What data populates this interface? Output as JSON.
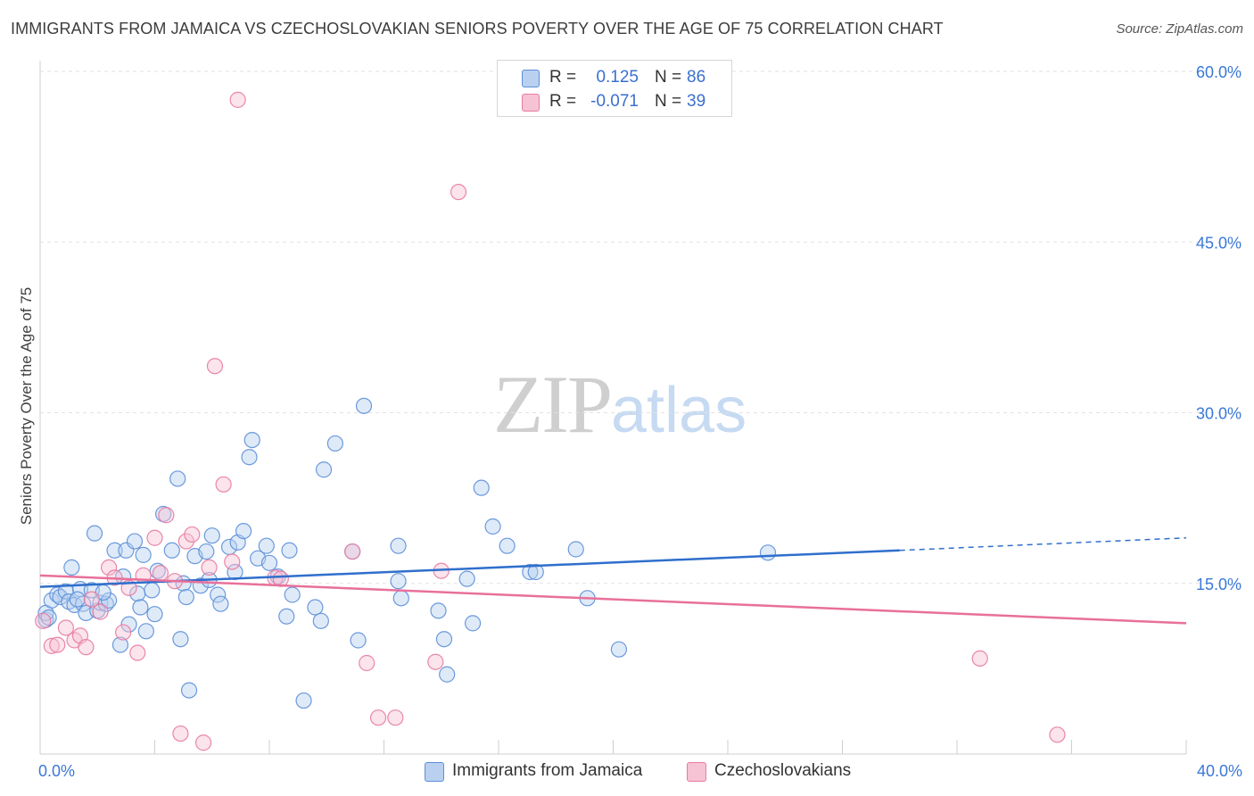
{
  "title": "IMMIGRANTS FROM JAMAICA VS CZECHOSLOVAKIAN SENIORS POVERTY OVER THE AGE OF 75 CORRELATION CHART",
  "source": "Source: ZipAtlas.com",
  "watermark": {
    "zip": "ZIP",
    "atlas": "atlas"
  },
  "legend_stats": [
    {
      "r_label": "R =",
      "r_value": "0.125",
      "n_label": "N =",
      "n_value": "86"
    },
    {
      "r_label": "R =",
      "r_value": "-0.071",
      "n_label": "N =",
      "n_value": "39"
    }
  ],
  "chart_data": {
    "type": "scatter",
    "title": "IMMIGRANTS FROM JAMAICA VS CZECHOSLOVAKIAN SENIORS POVERTY OVER THE AGE OF 75 CORRELATION CHART",
    "xlabel": "",
    "ylabel": "Seniors Poverty Over the Age of 75",
    "xlim": [
      0,
      40
    ],
    "ylim": [
      0,
      60
    ],
    "x_tick_labels": [
      "0.0%",
      "40.0%"
    ],
    "y_tick_labels": [
      "15.0%",
      "30.0%",
      "45.0%",
      "60.0%"
    ],
    "y_ticks": [
      15,
      30,
      45,
      60
    ],
    "grid": "horizontal dashed",
    "legend_position": "bottom",
    "colors": {
      "blue": "#5b8fd9",
      "blue_fill": "#b9d0f0",
      "blue_line": "#2f6fcc",
      "pink": "#e87aa0",
      "pink_fill": "#f6c3d4",
      "pink_line": "#e8709a"
    },
    "series": [
      {
        "name": "Immigrants from Jamaica",
        "color": "blue",
        "trend": {
          "x0": 0,
          "y0": 14.7,
          "x1": 30,
          "y1": 17.9,
          "dashed_to_x": 40,
          "dashed_to_y": 19.0
        },
        "points": [
          [
            0.2,
            11.8
          ],
          [
            0.2,
            12.4
          ],
          [
            0.4,
            13.5
          ],
          [
            0.6,
            14.0
          ],
          [
            0.7,
            13.8
          ],
          [
            0.9,
            14.3
          ],
          [
            1.0,
            13.4
          ],
          [
            1.1,
            16.4
          ],
          [
            1.2,
            13.1
          ],
          [
            1.4,
            14.5
          ],
          [
            1.5,
            13.2
          ],
          [
            1.6,
            12.4
          ],
          [
            1.8,
            14.4
          ],
          [
            1.9,
            19.4
          ],
          [
            2.0,
            12.6
          ],
          [
            2.1,
            13.3
          ],
          [
            2.3,
            13.2
          ],
          [
            2.4,
            13.5
          ],
          [
            2.6,
            17.9
          ],
          [
            2.8,
            9.6
          ],
          [
            2.9,
            15.6
          ],
          [
            3.0,
            17.9
          ],
          [
            3.1,
            11.4
          ],
          [
            3.3,
            18.7
          ],
          [
            3.4,
            14.1
          ],
          [
            3.6,
            17.5
          ],
          [
            3.7,
            10.8
          ],
          [
            3.9,
            14.4
          ],
          [
            4.0,
            12.3
          ],
          [
            4.1,
            16.1
          ],
          [
            4.3,
            21.1
          ],
          [
            4.6,
            17.9
          ],
          [
            4.8,
            24.2
          ],
          [
            4.9,
            10.1
          ],
          [
            5.0,
            15.0
          ],
          [
            5.2,
            5.6
          ],
          [
            5.4,
            17.4
          ],
          [
            5.6,
            14.8
          ],
          [
            5.8,
            17.8
          ],
          [
            5.9,
            15.3
          ],
          [
            6.0,
            19.2
          ],
          [
            6.2,
            14.0
          ],
          [
            6.3,
            13.2
          ],
          [
            6.6,
            18.2
          ],
          [
            6.8,
            16.0
          ],
          [
            6.9,
            18.6
          ],
          [
            7.1,
            19.6
          ],
          [
            7.3,
            26.1
          ],
          [
            7.4,
            27.6
          ],
          [
            7.6,
            17.2
          ],
          [
            7.9,
            18.3
          ],
          [
            8.0,
            16.8
          ],
          [
            8.3,
            15.6
          ],
          [
            8.6,
            12.1
          ],
          [
            8.7,
            17.9
          ],
          [
            8.8,
            14.0
          ],
          [
            9.2,
            4.7
          ],
          [
            9.6,
            12.9
          ],
          [
            9.8,
            11.7
          ],
          [
            9.9,
            25.0
          ],
          [
            10.3,
            27.3
          ],
          [
            10.9,
            17.8
          ],
          [
            11.1,
            10.0
          ],
          [
            11.3,
            30.6
          ],
          [
            12.5,
            18.3
          ],
          [
            12.5,
            15.2
          ],
          [
            12.6,
            13.7
          ],
          [
            13.9,
            12.6
          ],
          [
            14.1,
            10.1
          ],
          [
            14.2,
            7.0
          ],
          [
            14.9,
            15.4
          ],
          [
            15.1,
            11.5
          ],
          [
            15.4,
            23.4
          ],
          [
            15.8,
            20.0
          ],
          [
            16.3,
            18.3
          ],
          [
            17.1,
            16.0
          ],
          [
            17.3,
            16.0
          ],
          [
            18.7,
            18.0
          ],
          [
            19.1,
            13.7
          ],
          [
            20.2,
            9.2
          ],
          [
            25.4,
            17.7
          ],
          [
            0.3,
            12.0
          ],
          [
            1.3,
            13.6
          ],
          [
            2.2,
            14.2
          ],
          [
            5.1,
            13.8
          ],
          [
            3.5,
            12.9
          ]
        ]
      },
      {
        "name": "Czechoslovakians",
        "color": "pink",
        "trend": {
          "x0": 0,
          "y0": 15.7,
          "x1": 40,
          "y1": 11.5
        },
        "points": [
          [
            0.1,
            11.7
          ],
          [
            0.4,
            9.5
          ],
          [
            0.6,
            9.6
          ],
          [
            0.9,
            11.1
          ],
          [
            1.2,
            10.0
          ],
          [
            1.4,
            10.4
          ],
          [
            1.6,
            9.4
          ],
          [
            1.8,
            13.6
          ],
          [
            2.1,
            12.5
          ],
          [
            2.4,
            16.4
          ],
          [
            2.6,
            15.5
          ],
          [
            2.9,
            10.7
          ],
          [
            3.1,
            14.6
          ],
          [
            3.4,
            8.9
          ],
          [
            3.6,
            15.7
          ],
          [
            4.0,
            19.0
          ],
          [
            4.2,
            15.9
          ],
          [
            4.4,
            21.0
          ],
          [
            4.7,
            15.2
          ],
          [
            4.9,
            1.8
          ],
          [
            5.1,
            18.7
          ],
          [
            5.3,
            19.3
          ],
          [
            5.7,
            1.0
          ],
          [
            5.9,
            16.4
          ],
          [
            6.1,
            34.1
          ],
          [
            6.4,
            23.7
          ],
          [
            6.7,
            16.9
          ],
          [
            6.9,
            57.5
          ],
          [
            8.2,
            15.5
          ],
          [
            8.4,
            15.4
          ],
          [
            10.9,
            17.8
          ],
          [
            11.4,
            8.0
          ],
          [
            11.8,
            3.2
          ],
          [
            12.4,
            3.2
          ],
          [
            13.8,
            8.1
          ],
          [
            14.0,
            16.1
          ],
          [
            14.6,
            49.4
          ],
          [
            32.8,
            8.4
          ],
          [
            35.5,
            1.7
          ]
        ]
      }
    ]
  },
  "legend_bottom": [
    {
      "label": "Immigrants from Jamaica"
    },
    {
      "label": "Czechoslovakians"
    }
  ]
}
